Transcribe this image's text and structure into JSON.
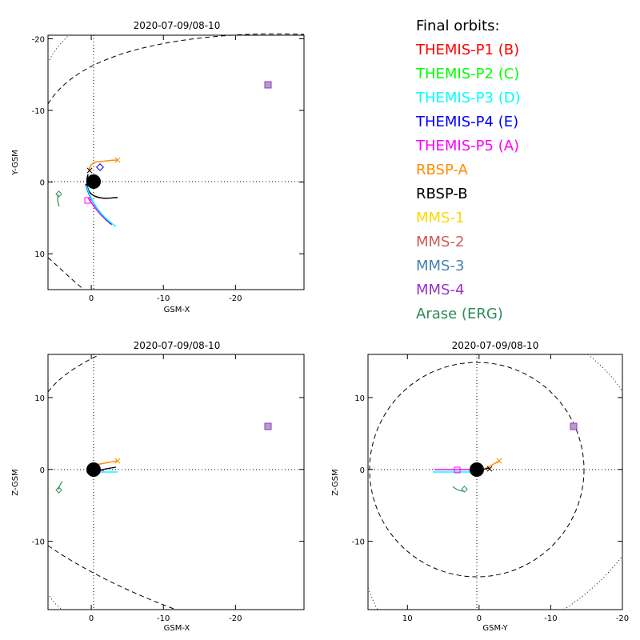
{
  "legend": {
    "title": "Final orbits:",
    "items": [
      {
        "label": "THEMIS-P1 (B)",
        "color": "#ff0000"
      },
      {
        "label": "THEMIS-P2 (C)",
        "color": "#00ff00"
      },
      {
        "label": "THEMIS-P3 (D)",
        "color": "#00ffff"
      },
      {
        "label": "THEMIS-P4 (E)",
        "color": "#0000ff"
      },
      {
        "label": "THEMIS-P5 (A)",
        "color": "#ff00ff"
      },
      {
        "label": "RBSP-A",
        "color": "#ff8c00"
      },
      {
        "label": "RBSP-B",
        "color": "#000000"
      },
      {
        "label": "MMS-1",
        "color": "#ffd700"
      },
      {
        "label": "MMS-2",
        "color": "#cd5c5c"
      },
      {
        "label": "MMS-3",
        "color": "#4682b4"
      },
      {
        "label": "MMS-4",
        "color": "#9932cc"
      },
      {
        "label": "Arase (ERG)",
        "color": "#2e8b57"
      }
    ]
  },
  "chart_data": [
    {
      "type": "scatter",
      "title": "2020-07-09/08-10",
      "xlabel": "GSM-X",
      "ylabel": "Y-GSM",
      "xlim": [
        6,
        -29.5
      ],
      "ylim": [
        15,
        -20.5
      ],
      "xticks": [
        0,
        -10,
        -20
      ],
      "yticks": [
        10,
        0,
        -10,
        -20
      ],
      "xtick_labels": [
        "0",
        "-10",
        "-20"
      ],
      "ytick_labels": [
        "10",
        "0",
        "-10",
        "-20"
      ]
    },
    {
      "type": "scatter",
      "title": "2020-07-09/08-10",
      "xlabel": "GSM-X",
      "ylabel": "Z-GSM",
      "xlim": [
        6,
        -29.5
      ],
      "ylim": [
        -19.5,
        16
      ],
      "xticks": [
        0,
        -10,
        -20
      ],
      "yticks": [
        -10,
        0,
        10
      ],
      "xtick_labels": [
        "0",
        "-10",
        "-20"
      ],
      "ytick_labels": [
        "-10",
        "0",
        "10"
      ]
    },
    {
      "type": "scatter",
      "title": "2020-07-09/08-10",
      "xlabel": "GSM-Y",
      "ylabel": "Z-GSM",
      "xlim": [
        15.5,
        -20
      ],
      "ylim": [
        -19.5,
        16
      ],
      "xticks": [
        10,
        0,
        -10,
        -20
      ],
      "yticks": [
        -10,
        0,
        10
      ],
      "xtick_labels": [
        "10",
        "0",
        "-10",
        "-20"
      ],
      "ytick_labels": [
        "-10",
        "0",
        "10"
      ]
    }
  ]
}
